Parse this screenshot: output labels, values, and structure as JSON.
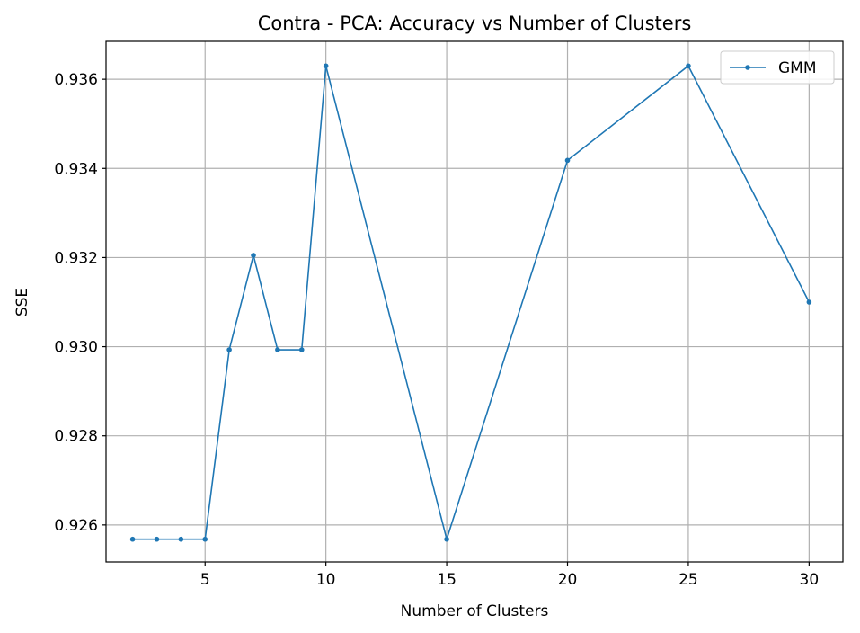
{
  "chart_data": {
    "type": "line",
    "title": "Contra - PCA: Accuracy vs Number of Clusters",
    "xlabel": "Number of Clusters",
    "ylabel": "SSE",
    "xlim": [
      0.9,
      31.4
    ],
    "ylim": [
      0.92517,
      0.93685
    ],
    "xticks": [
      5,
      10,
      15,
      20,
      25,
      30
    ],
    "xtick_labels": [
      "5",
      "10",
      "15",
      "20",
      "25",
      "30"
    ],
    "yticks": [
      0.926,
      0.928,
      0.93,
      0.932,
      0.934,
      0.936
    ],
    "ytick_labels": [
      "0.926",
      "0.928",
      "0.930",
      "0.932",
      "0.934",
      "0.936"
    ],
    "grid": true,
    "legend_position": "upper right",
    "series": [
      {
        "name": "GMM",
        "color": "#1f77b4",
        "marker": "point",
        "x": [
          2,
          3,
          4,
          5,
          6,
          7,
          8,
          9,
          10,
          15,
          20,
          25,
          30
        ],
        "y": [
          0.92568,
          0.92568,
          0.92568,
          0.92568,
          0.92993,
          0.93205,
          0.92993,
          0.92993,
          0.9363,
          0.92568,
          0.93418,
          0.9363,
          0.931
        ]
      }
    ]
  }
}
